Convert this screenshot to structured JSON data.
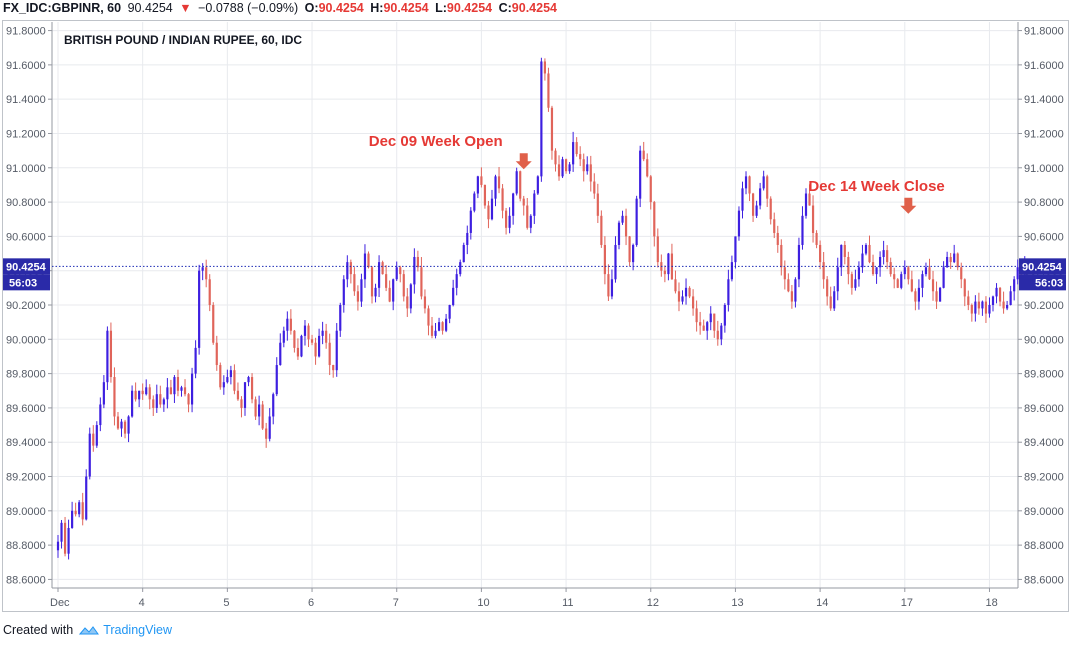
{
  "header": {
    "symbol": "FX_IDC:GBPINR, 60",
    "last": "90.4254",
    "change_arrow": "▼",
    "change": "−0.0788 (−0.09%)",
    "o_label": "O:",
    "o": "90.4254",
    "h_label": "H:",
    "h": "90.4254",
    "l_label": "L:",
    "l": "90.4254",
    "c_label": "C:",
    "c": "90.4254"
  },
  "footer": {
    "created_with": "Created with",
    "brand": "TradingView",
    "logo_icon": "tradingview-cloud-icon"
  },
  "colors": {
    "up": "#3d1fe0",
    "down": "#e0645a",
    "grid": "#e8eaee",
    "axis_text": "#555b66",
    "annotation": "#e53935",
    "price_line": "#1c2bb5"
  },
  "chart_data": {
    "type": "candlestick",
    "title": "BRITISH POUND / INDIAN RUPEE, 60, IDC",
    "ylim": [
      88.55,
      91.85
    ],
    "y_ticks": [
      "91.8000",
      "91.6000",
      "91.4000",
      "91.2000",
      "91.0000",
      "90.8000",
      "90.6000",
      "90.4000",
      "90.2000",
      "90.0000",
      "89.8000",
      "89.6000",
      "89.4000",
      "89.2000",
      "89.0000",
      "88.8000",
      "88.6000"
    ],
    "x_ticks": [
      {
        "label": "Dec",
        "index": 0
      },
      {
        "label": "4",
        "index": 24
      },
      {
        "label": "5",
        "index": 48
      },
      {
        "label": "6",
        "index": 72
      },
      {
        "label": "7",
        "index": 96
      },
      {
        "label": "10",
        "index": 120
      },
      {
        "label": "11",
        "index": 144
      },
      {
        "label": "12",
        "index": 168
      },
      {
        "label": "13",
        "index": 192
      },
      {
        "label": "14",
        "index": 216
      },
      {
        "label": "17",
        "index": 240
      },
      {
        "label": "18",
        "index": 264
      }
    ],
    "last_price": "90.4254",
    "countdown": "56:03",
    "annotations": [
      {
        "text": "Dec 09 Week Open",
        "index": 132,
        "price": 90.98
      },
      {
        "text": "Dec 14 Week Close",
        "index": 241,
        "price": 90.72
      }
    ],
    "closes": [
      88.82,
      88.93,
      88.75,
      88.9,
      89.0,
      88.98,
      89.05,
      88.95,
      89.2,
      89.45,
      89.38,
      89.5,
      89.62,
      89.75,
      90.05,
      89.78,
      89.55,
      89.48,
      89.52,
      89.45,
      89.55,
      89.7,
      89.65,
      89.7,
      89.68,
      89.72,
      89.65,
      89.6,
      89.68,
      89.62,
      89.65,
      89.72,
      89.68,
      89.78,
      89.7,
      89.72,
      89.68,
      89.62,
      89.8,
      89.95,
      90.4,
      90.42,
      90.35,
      90.2,
      89.98,
      89.85,
      89.72,
      89.75,
      89.78,
      89.82,
      89.7,
      89.65,
      89.6,
      89.75,
      89.78,
      89.65,
      89.55,
      89.62,
      89.48,
      89.42,
      89.55,
      89.68,
      89.85,
      89.98,
      90.05,
      90.12,
      90.05,
      89.95,
      89.9,
      90.02,
      90.08,
      90.0,
      89.98,
      89.9,
      90.02,
      90.05,
      89.98,
      89.85,
      89.82,
      90.05,
      90.2,
      90.35,
      90.45,
      90.38,
      90.28,
      90.22,
      90.35,
      90.5,
      90.42,
      90.25,
      90.3,
      90.45,
      90.38,
      90.3,
      90.22,
      90.35,
      90.42,
      90.38,
      90.25,
      90.18,
      90.32,
      90.48,
      90.42,
      90.25,
      90.18,
      90.08,
      90.02,
      90.05,
      90.1,
      90.05,
      90.12,
      90.2,
      90.3,
      90.38,
      90.45,
      90.55,
      90.62,
      90.75,
      90.85,
      90.95,
      90.9,
      90.78,
      90.7,
      90.82,
      90.95,
      90.88,
      90.75,
      90.65,
      90.72,
      90.85,
      90.98,
      90.82,
      90.78,
      90.65,
      90.72,
      90.85,
      90.95,
      91.62,
      91.55,
      91.35,
      91.1,
      91.02,
      90.95,
      91.05,
      90.98,
      91.02,
      91.15,
      91.08,
      91.05,
      90.98,
      91.02,
      90.92,
      90.85,
      90.72,
      90.55,
      90.38,
      90.25,
      90.35,
      90.55,
      90.68,
      90.72,
      90.6,
      90.45,
      90.55,
      90.82,
      91.1,
      91.05,
      90.95,
      90.8,
      90.6,
      90.45,
      90.4,
      90.38,
      90.5,
      90.35,
      90.28,
      90.22,
      90.25,
      90.3,
      90.25,
      90.18,
      90.1,
      90.08,
      90.05,
      90.1,
      90.15,
      90.05,
      90.0,
      90.08,
      90.2,
      90.35,
      90.45,
      90.6,
      90.75,
      90.88,
      90.95,
      90.85,
      90.72,
      90.78,
      90.88,
      90.95,
      90.82,
      90.7,
      90.62,
      90.55,
      90.42,
      90.35,
      90.28,
      90.22,
      90.35,
      90.55,
      90.72,
      90.85,
      90.78,
      90.62,
      90.55,
      90.45,
      90.35,
      90.25,
      90.18,
      90.28,
      90.42,
      90.55,
      90.48,
      90.38,
      90.3,
      90.35,
      90.42,
      90.5,
      90.55,
      90.45,
      90.38,
      90.42,
      90.48,
      90.52,
      90.45,
      90.38,
      90.35,
      90.3,
      90.38,
      90.42,
      90.35,
      90.28,
      90.22,
      90.3,
      90.38,
      90.42,
      90.35,
      90.28,
      90.22,
      90.3,
      90.42,
      90.48,
      90.45,
      90.5,
      90.42,
      90.35,
      90.25,
      90.2,
      90.15,
      90.22,
      90.18,
      90.22,
      90.15,
      90.2,
      90.25,
      90.3,
      90.22,
      90.18,
      90.2,
      90.28,
      90.35,
      90.42,
      90.38,
      90.4254
    ]
  }
}
